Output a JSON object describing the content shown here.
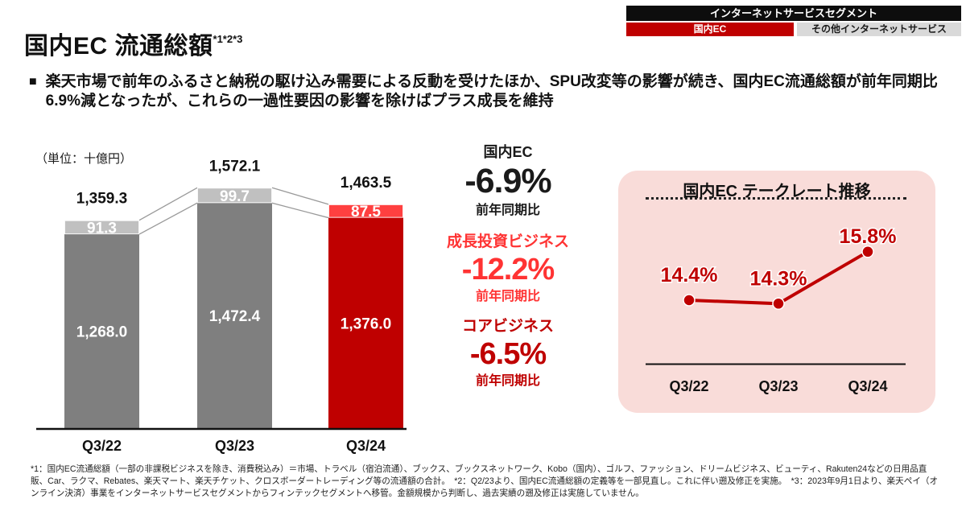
{
  "header_tabs": {
    "segment_label": "インターネットサービスセグメント",
    "active_tab": "国内EC",
    "inactive_tab": "その他インターネットサービス",
    "colors": {
      "segment_bg": "#0d0d0d",
      "active_bg": "#bf0000",
      "inactive_bg": "#d9d9d9"
    }
  },
  "title": {
    "text": "国内EC 流通総額",
    "superscript": "*1*2*3"
  },
  "summary": {
    "marker": "■",
    "text": "楽天市場で前年のふるさと納税の駆け込み需要による反動を受けたほか、SPU改変等の影響が続き、国内EC流通総額が前年同期比6.9%減となったが、これらの一過性要因の影響を除けばプラス成長を維持"
  },
  "unit_label": "（単位：十億円）",
  "kpis": [
    {
      "label": "国内EC",
      "value": "-6.9%",
      "sub": "前年同期比",
      "color": "#1a1a1a"
    },
    {
      "label": "成長投資ビジネス",
      "value": "-12.2%",
      "sub": "前年同期比",
      "color": "#ff3333"
    },
    {
      "label": "コアビジネス",
      "value": "-6.5%",
      "sub": "前年同期比",
      "color": "#bf0000"
    }
  ],
  "chart_data": [
    {
      "type": "bar",
      "title": "国内EC 流通総額",
      "subtitle": "stacked bars, totals above",
      "unit": "十億円",
      "categories": [
        "Q3/22",
        "Q3/23",
        "Q3/24"
      ],
      "series": [
        {
          "name": "コアビジネス",
          "values": [
            1268.0,
            1472.4,
            1376.0
          ],
          "labels": [
            "1,268.0",
            "1,472.4",
            "1,376.0"
          ]
        },
        {
          "name": "成長投資ビジネス",
          "values": [
            91.3,
            99.7,
            87.5
          ],
          "labels": [
            "91.3",
            "99.7",
            "87.5"
          ]
        }
      ],
      "totals": [
        1359.3,
        1572.1,
        1463.5
      ],
      "total_labels": [
        "1,359.3",
        "1,572.1",
        "1,463.5"
      ],
      "ylim": [
        0,
        1700
      ],
      "grid": false,
      "colors": {
        "dark": [
          "#7f7f7f",
          "#7f7f7f",
          "#bf0000"
        ],
        "light": [
          "#c0c0c0",
          "#c0c0c0",
          "#ff4040"
        ],
        "connector": "#999999",
        "axis": "#111111"
      }
    },
    {
      "type": "line",
      "title": "国内EC テークレート推移",
      "categories": [
        "Q3/22",
        "Q3/23",
        "Q3/24"
      ],
      "values": [
        14.4,
        14.3,
        15.8
      ],
      "labels": [
        "14.4%",
        "14.3%",
        "15.8%"
      ],
      "grid": false,
      "colors": {
        "line": "#bf0000",
        "panel_bg": "#f9dcd9",
        "axis": "#111111"
      }
    }
  ],
  "footnotes": "*1：国内EC流通総額（一部の非課税ビジネスを除き、消費税込み）＝市場、トラベル（宿泊流通）、ブックス、ブックスネットワーク、Kobo（国内）、ゴルフ、ファッション、ドリームビジネス、ビューティ、Rakuten24などの日用品直販、Car、ラクマ、Rebates、楽天マート、楽天チケット、クロスボーダートレーディング等の流通額の合計。　*2：Q2/23より、国内EC流通総額の定義等を一部見直し。これに伴い遡及修正を実施。　*3：2023年9月1日より、楽天ペイ（オンライン決済）事業をインターネットサービスセグメントからフィンテックセグメントへ移管。金額規模から判断し、過去実績の遡及修正は実施していません。"
}
